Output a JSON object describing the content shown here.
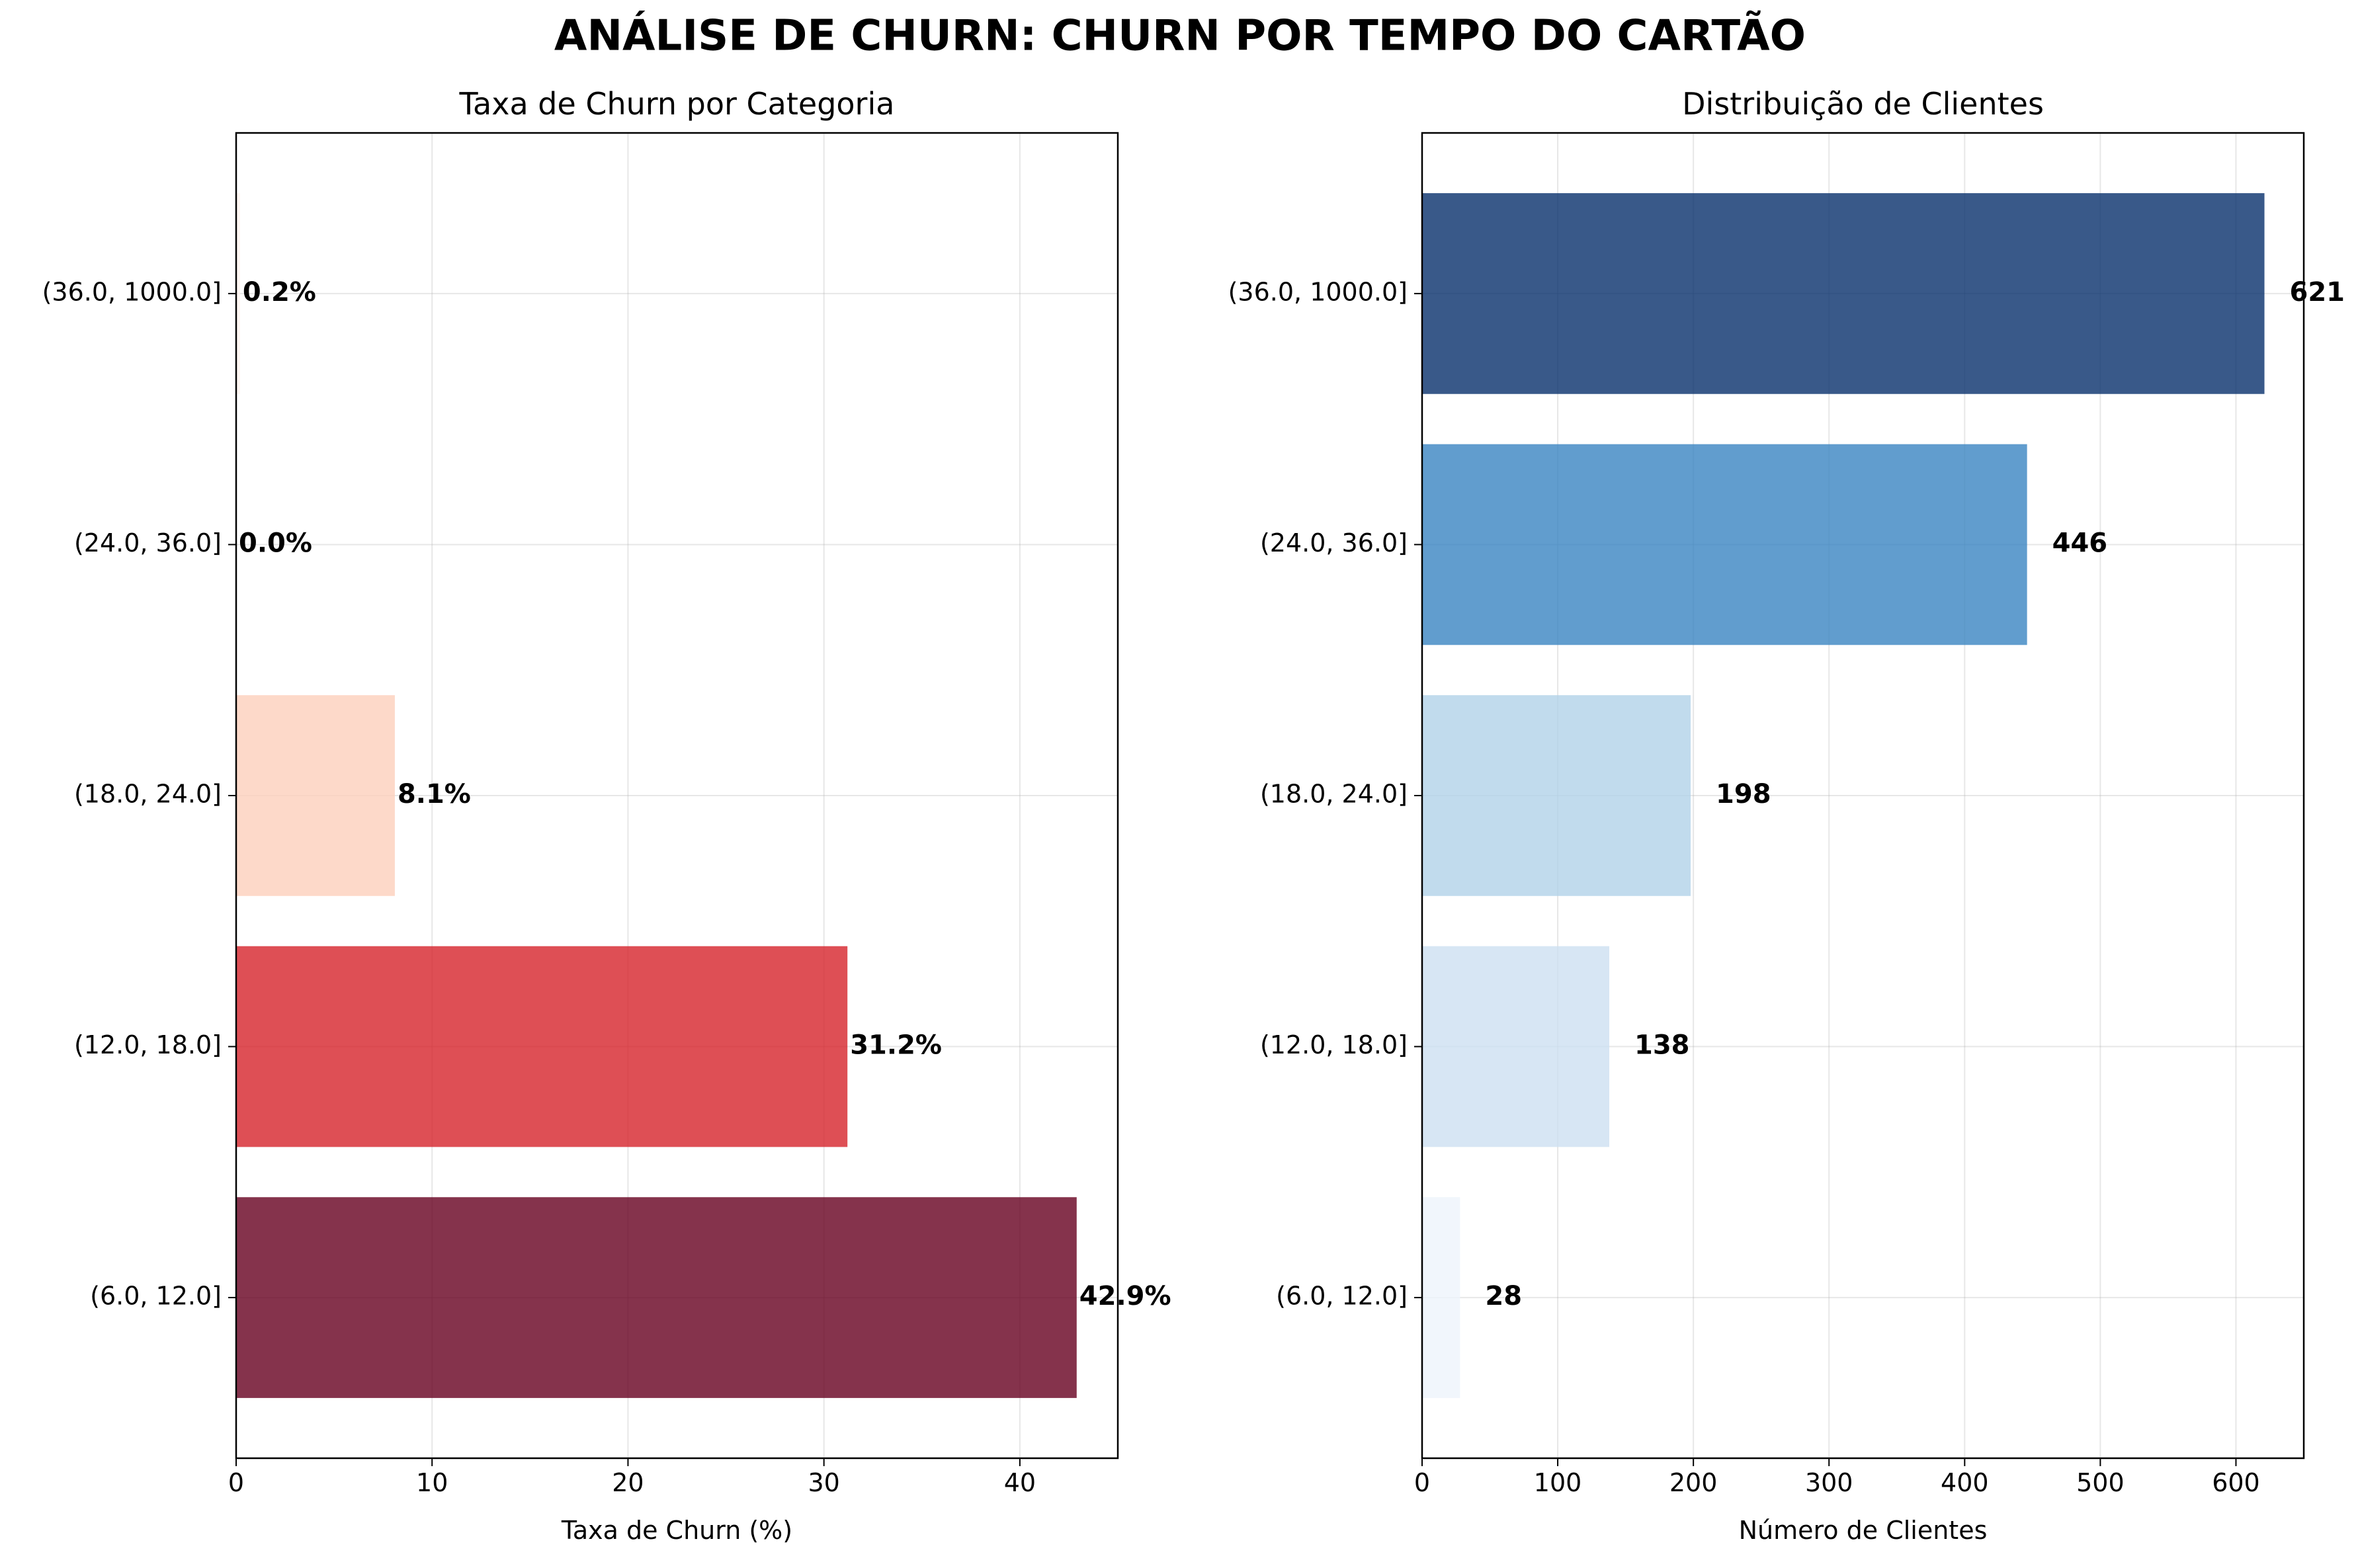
{
  "figure": {
    "suptitle": "ANÁLISE DE CHURN: CHURN POR TEMPO DO CARTÃO"
  },
  "chart_data": [
    {
      "type": "bar",
      "orientation": "horizontal",
      "title": "Taxa de Churn por Categoria",
      "xlabel": "Taxa de Churn (%)",
      "ylabel": "",
      "categories": [
        "(6.0, 12.0]",
        "(12.0, 18.0]",
        "(18.0, 24.0]",
        "(24.0, 36.0]",
        "(36.0, 1000.0]"
      ],
      "values": [
        42.9,
        31.2,
        8.1,
        0.0,
        0.2
      ],
      "data_labels": [
        "42.9%",
        "31.2%",
        "8.1%",
        "0.0%",
        "0.2%"
      ],
      "colors": [
        "#67001f",
        "#d6232a",
        "#fcd0bc",
        "#fff5f0",
        "#fff5f0"
      ],
      "xlim": [
        0,
        45
      ],
      "xticks": [
        0,
        10,
        20,
        30,
        40
      ],
      "grid": true,
      "legend": "none"
    },
    {
      "type": "bar",
      "orientation": "horizontal",
      "title": "Distribuição de Clientes",
      "xlabel": "Número de Clientes",
      "ylabel": "",
      "categories": [
        "(6.0, 12.0]",
        "(12.0, 18.0]",
        "(18.0, 24.0]",
        "(24.0, 36.0]",
        "(36.0, 1000.0]"
      ],
      "values": [
        28,
        138,
        198,
        446,
        621
      ],
      "data_labels": [
        "28",
        "138",
        "198",
        "446",
        "621"
      ],
      "colors": [
        "#eef4fb",
        "#cde0f1",
        "#b2d2e8",
        "#3a85c2",
        "#08306b"
      ],
      "xlim": [
        0,
        650
      ],
      "xticks": [
        0,
        100,
        200,
        300,
        400,
        500,
        600
      ],
      "grid": true,
      "legend": "none"
    }
  ]
}
